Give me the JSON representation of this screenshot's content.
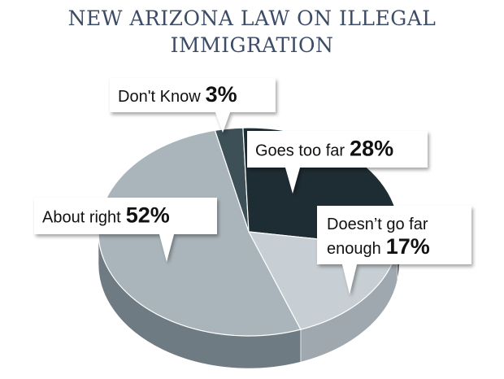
{
  "chart_data": {
    "type": "pie",
    "title_lines": [
      "NEW ARIZONA LAW ON ILLEGAL",
      "IMMIGRATION"
    ],
    "slices": [
      {
        "label": "Don't Know",
        "value": 3,
        "display": "3%",
        "label_lines": [
          "Don't Know"
        ],
        "color": "#3d4f57",
        "side": "#2b3a41"
      },
      {
        "label": "Goes too far",
        "value": 28,
        "display": "28%",
        "label_lines": [
          "Goes too far"
        ],
        "color": "#1e2c33",
        "side": "#152127"
      },
      {
        "label": "Doesn’t go far enough",
        "value": 17,
        "display": "17%",
        "label_lines": [
          "Doesn’t go far",
          "enough"
        ],
        "color": "#c7cfd4",
        "side": "#9ea8ae"
      },
      {
        "label": "About right",
        "value": 52,
        "display": "52%",
        "label_lines": [
          "About right"
        ],
        "color": "#aab5bb",
        "side": "#6f7b82"
      }
    ]
  }
}
